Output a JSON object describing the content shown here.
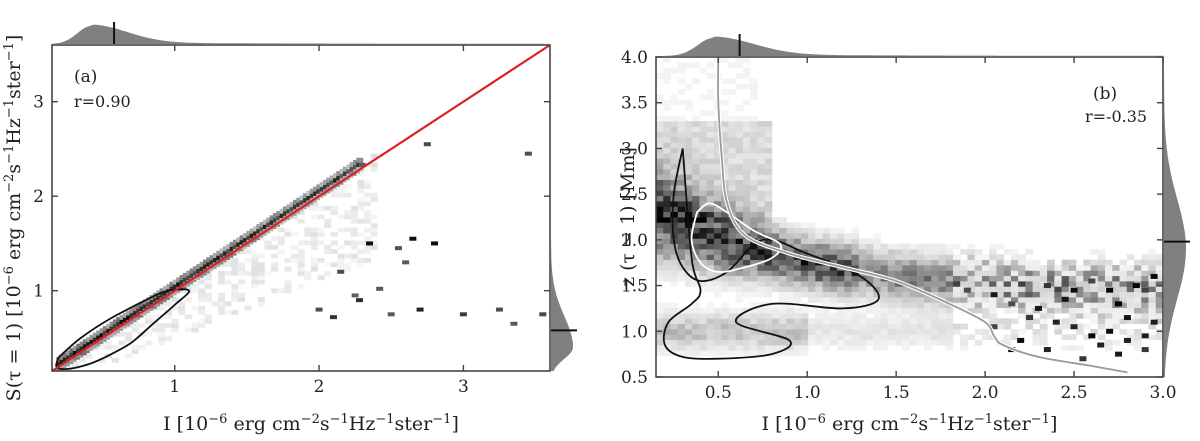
{
  "chart_data": [
    {
      "type": "heatmap",
      "panel_label": "(a)",
      "annotation": "r=0.90",
      "xlabel_parts": [
        "I [10",
        "−6",
        " erg cm",
        "−2",
        "s",
        "−1",
        "Hz",
        "−1",
        "ster",
        "−1",
        "]"
      ],
      "ylabel_parts": [
        "S(τ = 1) [10",
        "−6",
        " erg cm",
        "−2",
        "s",
        "−1",
        "Hz",
        "−1",
        "ster",
        "−1",
        "]"
      ],
      "xlim": [
        0.15,
        3.6
      ],
      "ylim": [
        0.15,
        3.6
      ],
      "xticks": [
        1,
        2,
        3
      ],
      "yticks": [
        1,
        2,
        3
      ],
      "xtick_labels": [
        "1",
        "2",
        "3"
      ],
      "ytick_labels": [
        "1",
        "2",
        "3"
      ],
      "fit_line": {
        "x": [
          0.15,
          3.6
        ],
        "y": [
          0.15,
          3.6
        ],
        "color": "#e02020"
      },
      "contour_black": {
        "x": [
          0.2,
          0.35,
          0.55,
          0.8,
          0.95,
          1.1,
          1.0,
          0.85,
          0.7,
          0.55,
          0.4,
          0.25,
          0.18,
          0.2
        ],
        "y": [
          0.3,
          0.5,
          0.7,
          0.9,
          1.0,
          1.0,
          0.85,
          0.65,
          0.45,
          0.32,
          0.22,
          0.17,
          0.2,
          0.3
        ]
      },
      "ridge": {
        "x0": 0.2,
        "x1": 2.3,
        "y0": 0.22,
        "y1": 2.35
      },
      "outliers": [
        [
          2.75,
          2.55
        ],
        [
          2.3,
          2.33
        ],
        [
          2.55,
          1.45
        ],
        [
          3.45,
          2.45
        ],
        [
          2.8,
          1.5
        ],
        [
          2.35,
          1.5
        ],
        [
          2.15,
          1.2
        ],
        [
          2.25,
          0.95
        ],
        [
          2.0,
          0.8
        ],
        [
          2.7,
          0.8
        ],
        [
          3.0,
          0.75
        ],
        [
          2.5,
          0.75
        ],
        [
          3.55,
          0.75
        ],
        [
          3.35,
          0.65
        ],
        [
          2.6,
          1.3
        ],
        [
          2.65,
          1.55
        ],
        [
          3.25,
          0.8
        ],
        [
          2.1,
          0.72
        ],
        [
          2.28,
          0.9
        ],
        [
          2.42,
          1.02
        ]
      ],
      "marginal_top_median": 0.58,
      "marginal_right_median": 0.58,
      "colors": {
        "fit": "#e02020",
        "contour": "#111111",
        "marginal": "#808080"
      }
    },
    {
      "type": "heatmap",
      "panel_label": "(b)",
      "annotation": "r=-0.35",
      "xlabel_parts": [
        "I [10",
        "−6",
        " erg cm",
        "−2",
        "s",
        "−1",
        "Hz",
        "−1",
        "ster",
        "−1",
        "]"
      ],
      "ylabel": "z (τ = 1) [Mm]",
      "xlim": [
        0.15,
        3.0
      ],
      "ylim": [
        0.5,
        4.0
      ],
      "xticks": [
        0.5,
        1.0,
        1.5,
        2.0,
        2.5,
        3.0
      ],
      "yticks": [
        0.5,
        1.0,
        1.5,
        2.0,
        2.5,
        3.0,
        3.5,
        4.0
      ],
      "xtick_labels": [
        "0.5",
        "1.0",
        "1.5",
        "2.0",
        "2.5",
        "3.0"
      ],
      "ytick_labels": [
        "0.5",
        "1.0",
        "1.5",
        "2.0",
        "2.5",
        "3.0",
        "3.5",
        "4.0"
      ],
      "ridge": {
        "x": [
          0.25,
          0.45,
          0.7,
          1.0,
          1.5,
          2.2,
          3.0
        ],
        "y": [
          2.2,
          2.05,
          1.9,
          1.75,
          1.6,
          1.5,
          1.45
        ]
      },
      "mean_curve": {
        "x": [
          0.5,
          0.5,
          0.52,
          0.55,
          0.65,
          0.9,
          1.2,
          1.5,
          1.8,
          2.0,
          2.05,
          2.1,
          2.3,
          2.6,
          2.8
        ],
        "y": [
          4.0,
          3.5,
          2.9,
          2.4,
          2.05,
          1.85,
          1.7,
          1.55,
          1.3,
          1.1,
          0.95,
          0.85,
          0.72,
          0.62,
          0.55
        ],
        "color": "#9a9a9a"
      },
      "contour_black": {
        "x": [
          0.3,
          0.25,
          0.25,
          0.3,
          0.4,
          0.55,
          0.75,
          1.0,
          1.3,
          1.4,
          1.2,
          0.8,
          0.6,
          0.9,
          0.8,
          0.5,
          0.3,
          0.2,
          0.22,
          0.35,
          0.4,
          0.35,
          0.3
        ],
        "y": [
          3.0,
          2.5,
          2.0,
          1.7,
          1.55,
          1.65,
          2.0,
          1.85,
          1.6,
          1.35,
          1.25,
          1.3,
          1.1,
          0.9,
          0.75,
          0.7,
          0.72,
          0.85,
          1.1,
          1.3,
          1.45,
          1.8,
          3.0
        ]
      },
      "contour_white": {
        "x": [
          0.38,
          0.35,
          0.4,
          0.5,
          0.65,
          0.8,
          0.85,
          0.7,
          0.55,
          0.45,
          0.38
        ],
        "y": [
          2.3,
          2.0,
          1.75,
          1.65,
          1.7,
          1.8,
          1.95,
          2.1,
          2.3,
          2.4,
          2.3
        ]
      },
      "outliers": [
        [
          1.9,
          1.45
        ],
        [
          2.05,
          1.4
        ],
        [
          2.15,
          1.3
        ],
        [
          2.3,
          1.25
        ],
        [
          2.4,
          1.1
        ],
        [
          2.5,
          1.05
        ],
        [
          2.6,
          0.95
        ],
        [
          2.7,
          1.0
        ],
        [
          2.8,
          0.9
        ],
        [
          2.9,
          0.8
        ],
        [
          2.95,
          1.1
        ],
        [
          2.2,
          0.9
        ],
        [
          2.35,
          0.8
        ],
        [
          2.55,
          0.7
        ],
        [
          2.75,
          1.3
        ],
        [
          2.85,
          1.5
        ],
        [
          2.65,
          0.85
        ],
        [
          2.45,
          1.35
        ],
        [
          2.9,
          1.45
        ],
        [
          2.05,
          1.05
        ],
        [
          2.25,
          1.15
        ],
        [
          2.6,
          1.55
        ],
        [
          2.95,
          1.6
        ],
        [
          2.75,
          0.75
        ],
        [
          2.15,
          0.8
        ],
        [
          2.5,
          1.45
        ],
        [
          2.8,
          1.15
        ],
        [
          2.35,
          1.5
        ],
        [
          2.7,
          1.45
        ],
        [
          2.9,
          0.95
        ]
      ],
      "marginal_top_median": 0.62,
      "marginal_right_median": 1.98,
      "colors": {
        "curve": "#9a9a9a",
        "contour": "#111111",
        "contour_inner": "#ffffff",
        "marginal": "#808080"
      }
    }
  ]
}
